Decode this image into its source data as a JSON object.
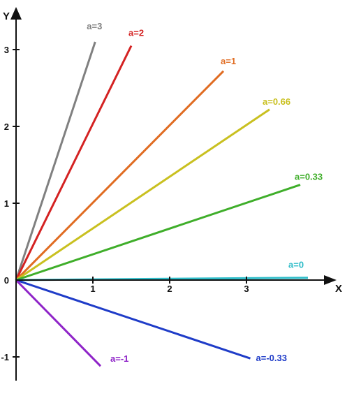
{
  "chart_data": {
    "type": "line",
    "xlabel": "X",
    "ylabel": "Y",
    "xlim": [
      -0.2,
      4.2
    ],
    "ylim": [
      -1.2,
      3.4
    ],
    "xticks": [
      1,
      2,
      3
    ],
    "yticks": [
      -1,
      0,
      1,
      2,
      3
    ],
    "series": [
      {
        "name": "a=3",
        "color": "#808080",
        "points": [
          [
            0,
            0
          ],
          [
            1.03,
            3.1
          ]
        ]
      },
      {
        "name": "a=2",
        "color": "#d42222",
        "points": [
          [
            0,
            0
          ],
          [
            1.5,
            3.05
          ]
        ]
      },
      {
        "name": "a=1",
        "color": "#e06c22",
        "points": [
          [
            0,
            0
          ],
          [
            2.7,
            2.72
          ]
        ]
      },
      {
        "name": "a=0.66",
        "color": "#c9c020",
        "points": [
          [
            0,
            0
          ],
          [
            3.3,
            2.22
          ]
        ]
      },
      {
        "name": "a=0.33",
        "color": "#3fae2a",
        "points": [
          [
            0,
            0
          ],
          [
            3.7,
            1.24
          ]
        ]
      },
      {
        "name": "a=0",
        "color": "#2ebcc8",
        "points": [
          [
            0,
            0
          ],
          [
            3.8,
            0.03
          ]
        ]
      },
      {
        "name": "a=-0.33",
        "color": "#1f3cc8",
        "points": [
          [
            0,
            0
          ],
          [
            3.05,
            -1.02
          ]
        ]
      },
      {
        "name": "a=-1",
        "color": "#8f24c8",
        "points": [
          [
            0,
            0
          ],
          [
            1.1,
            -1.12
          ]
        ]
      }
    ]
  }
}
